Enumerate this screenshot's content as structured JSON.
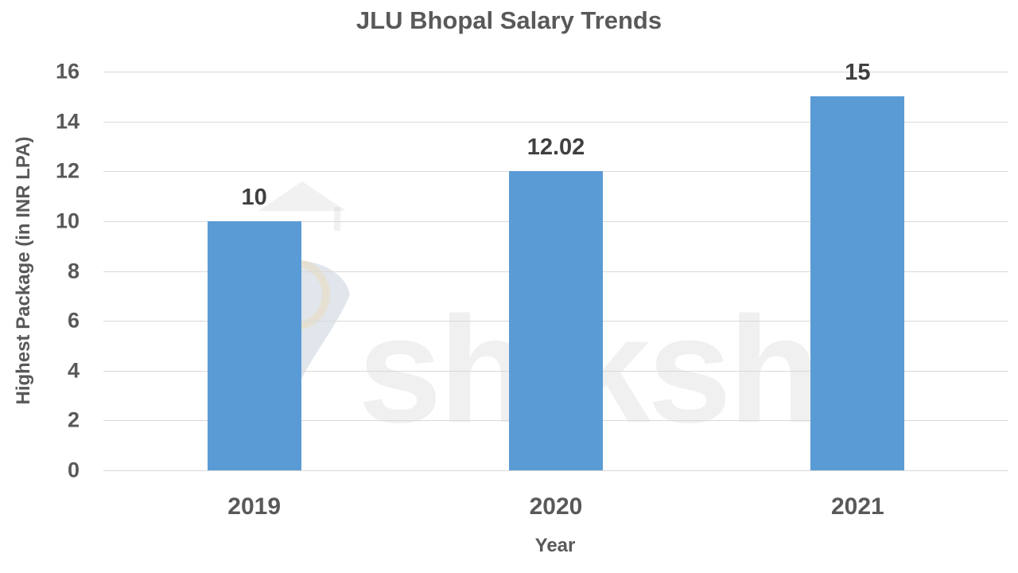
{
  "chart_data": {
    "type": "bar",
    "title": "JLU Bhopal Salary Trends",
    "xlabel": "Year",
    "ylabel": "Highest Package (in INR LPA)",
    "categories": [
      "2019",
      "2020",
      "2021"
    ],
    "values": [
      10,
      12.02,
      15
    ],
    "data_labels": [
      "10",
      "12.02",
      "15"
    ],
    "ylim": [
      0,
      16
    ],
    "yticks": [
      "0",
      "2",
      "4",
      "6",
      "8",
      "10",
      "12",
      "14",
      "16"
    ],
    "grid": true,
    "legend": "none",
    "bar_color": "#5b9bd5",
    "watermark": "shiksha"
  }
}
